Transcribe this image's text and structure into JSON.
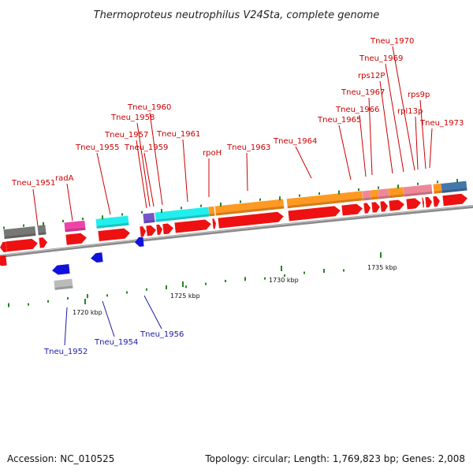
{
  "title": "Thermoproteus neutrophilus V24Sta, complete genome",
  "accession": "Accession: NC_010525",
  "summary": "Topology: circular; Length: 1,769,823 bp; Genes: 2,008",
  "ruler_labels": [
    {
      "text": "1720 kbp"
    },
    {
      "text": "1725 kbp"
    },
    {
      "text": "1730 kbp"
    },
    {
      "text": "1735 kbp"
    }
  ],
  "top_labels": [
    {
      "text": "Tneu_1951"
    },
    {
      "text": "radA"
    },
    {
      "text": "Tneu_1955"
    },
    {
      "text": "Tneu_1957"
    },
    {
      "text": "Tneu_1958"
    },
    {
      "text": "Tneu_1959"
    },
    {
      "text": "Tneu_1960"
    },
    {
      "text": "Tneu_1961"
    },
    {
      "text": "rpoH"
    },
    {
      "text": "Tneu_1963"
    },
    {
      "text": "Tneu_1964"
    },
    {
      "text": "Tneu_1965"
    },
    {
      "text": "Tneu_1966"
    },
    {
      "text": "Tneu_1967"
    },
    {
      "text": "rps12P"
    },
    {
      "text": "Tneu_1969"
    },
    {
      "text": "Tneu_1970"
    },
    {
      "text": "rpl13p"
    },
    {
      "text": "rps9p"
    },
    {
      "text": "Tneu_1973"
    }
  ],
  "bottom_labels": [
    {
      "text": "Tneu_1952"
    },
    {
      "text": "Tneu_1954"
    },
    {
      "text": "Tneu_1956"
    }
  ],
  "colors": {
    "cds_forward": "#ee1111",
    "cds_reverse": "#1111dd",
    "backbone": "#888888",
    "gc_tick": "#228822",
    "cog_gray": "#777777",
    "cog_magenta": "#ee44aa",
    "cog_cyan": "#22eeee",
    "cog_purple": "#7755cc",
    "cog_orange": "#ff9922",
    "cog_pink": "#ee8899",
    "cog_blue": "#4477aa"
  }
}
